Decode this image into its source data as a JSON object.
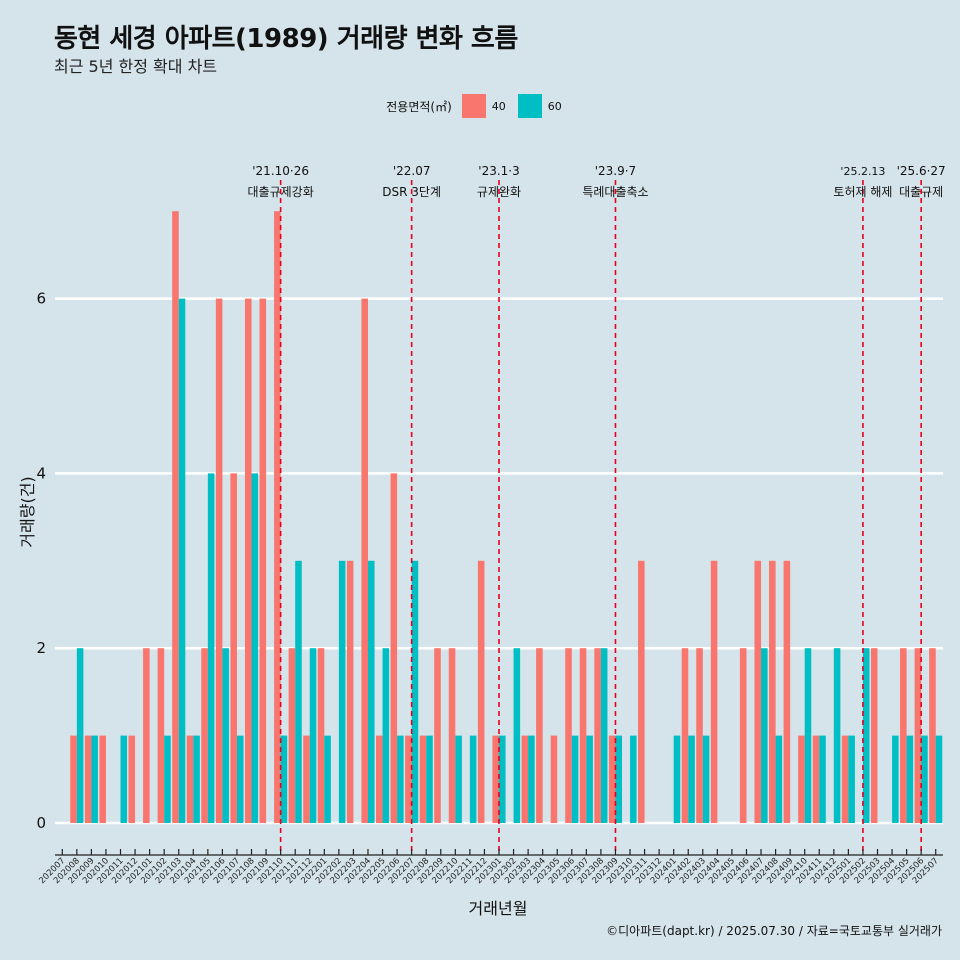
{
  "title": "동현 세경 아파트(1989) 거래량 변화 흐름",
  "subtitle": "최근 5년 한정 확대 차트",
  "caption": "©디아파트(dapt.kr) / 2025.07.30 / 자료=국토교통부 실거래가",
  "legend": {
    "title": "전용면적(㎡)",
    "items": [
      {
        "label": "40",
        "color": "#f8766d"
      },
      {
        "label": "60",
        "color": "#00bfc4"
      }
    ]
  },
  "chart_data": {
    "type": "bar",
    "title": "동현 세경 아파트(1989) 거래량 변화 흐름",
    "xlabel": "거래년월",
    "ylabel": "거래량(건)",
    "ylim": [
      0,
      7
    ],
    "yticks": [
      0,
      2,
      4,
      6
    ],
    "grid": true,
    "legend_position": "top",
    "categories": [
      "202007",
      "202008",
      "202009",
      "202010",
      "202011",
      "202012",
      "202101",
      "202102",
      "202103",
      "202104",
      "202105",
      "202106",
      "202107",
      "202108",
      "202109",
      "202110",
      "202111",
      "202112",
      "202201",
      "202202",
      "202203",
      "202204",
      "202205",
      "202206",
      "202207",
      "202208",
      "202209",
      "202210",
      "202211",
      "202212",
      "202301",
      "202302",
      "202303",
      "202304",
      "202305",
      "202306",
      "202307",
      "202308",
      "202309",
      "202310",
      "202311",
      "202312",
      "202401",
      "202402",
      "202403",
      "202404",
      "202405",
      "202406",
      "202407",
      "202408",
      "202409",
      "202410",
      "202411",
      "202412",
      "202501",
      "202502",
      "202503",
      "202504",
      "202505",
      "202506",
      "202507"
    ],
    "series": [
      {
        "name": "40",
        "color": "#f8766d",
        "values": [
          0,
          1,
          1,
          1,
          0,
          1,
          2,
          2,
          7,
          1,
          2,
          6,
          4,
          6,
          6,
          7,
          2,
          1,
          2,
          0,
          3,
          6,
          1,
          4,
          1,
          1,
          2,
          2,
          0,
          3,
          1,
          0,
          1,
          2,
          1,
          2,
          2,
          2,
          1,
          0,
          3,
          0,
          0,
          2,
          2,
          3,
          0,
          2,
          3,
          3,
          3,
          1,
          1,
          0,
          1,
          0,
          2,
          0,
          2,
          2,
          2
        ]
      },
      {
        "name": "60",
        "color": "#00bfc4",
        "values": [
          0,
          2,
          1,
          0,
          1,
          0,
          0,
          1,
          6,
          1,
          4,
          2,
          1,
          4,
          0,
          1,
          3,
          2,
          1,
          3,
          0,
          3,
          2,
          1,
          3,
          1,
          0,
          1,
          1,
          0,
          1,
          2,
          1,
          0,
          0,
          1,
          1,
          2,
          1,
          1,
          0,
          0,
          1,
          1,
          1,
          0,
          0,
          0,
          2,
          1,
          0,
          2,
          1,
          2,
          1,
          2,
          0,
          1,
          1,
          1,
          1
        ]
      }
    ],
    "annotations": [
      {
        "category": "202110",
        "date": "'21.10·26",
        "label": "대출규제강화"
      },
      {
        "category": "202207",
        "date": "'22.07",
        "label": "DSR 3단계"
      },
      {
        "category": "202301",
        "date": "'23.1·3",
        "label": "규제완화"
      },
      {
        "category": "202309",
        "date": "'23.9·7",
        "label": "특례대출축소"
      },
      {
        "category": "202502",
        "date": "'25.2.13",
        "label": "토허제 해제"
      },
      {
        "category": "202506",
        "date": "'25.6·27",
        "label": "대출규제"
      }
    ]
  }
}
